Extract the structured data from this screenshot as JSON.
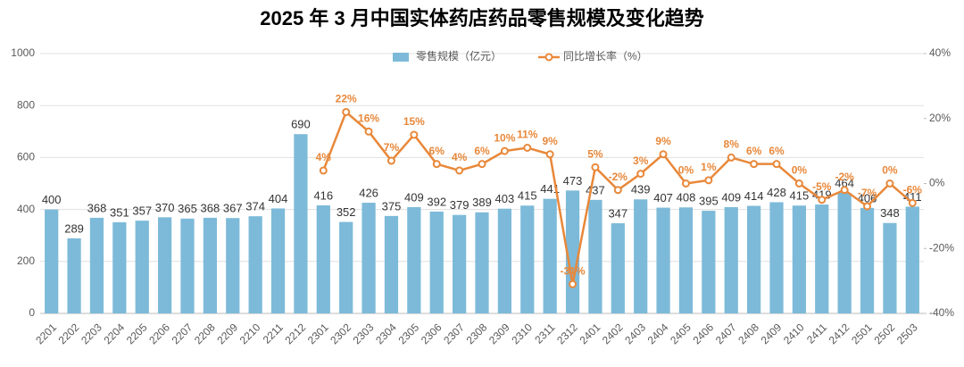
{
  "chart_data": {
    "type": "bar_line",
    "title": "2025 年 3 月中国实体药店药品零售规模及变化趋势",
    "categories": [
      "2201",
      "2202",
      "2203",
      "2204",
      "2205",
      "2206",
      "2207",
      "2208",
      "2209",
      "2210",
      "2211",
      "2212",
      "2301",
      "2302",
      "2303",
      "2304",
      "2305",
      "2306",
      "2307",
      "2308",
      "2309",
      "2310",
      "2311",
      "2312",
      "2401",
      "2402",
      "2403",
      "2404",
      "2405",
      "2406",
      "2407",
      "2408",
      "2409",
      "2410",
      "2411",
      "2412",
      "2501",
      "2502",
      "2503"
    ],
    "series": [
      {
        "name": "零售规模（亿元）",
        "type": "bar",
        "color": "#7dbad9",
        "values": [
          400,
          289,
          368,
          351,
          357,
          370,
          365,
          368,
          367,
          374,
          404,
          690,
          416,
          352,
          426,
          375,
          409,
          392,
          379,
          389,
          403,
          415,
          441,
          473,
          437,
          347,
          439,
          407,
          408,
          395,
          409,
          414,
          428,
          415,
          419,
          464,
          406,
          348,
          411
        ]
      },
      {
        "name": "同比增长率（%）",
        "type": "line",
        "axis": "y2",
        "color": "#e8883a",
        "values": [
          null,
          null,
          null,
          null,
          null,
          null,
          null,
          null,
          null,
          null,
          null,
          null,
          4,
          22,
          16,
          7,
          15,
          6,
          4,
          6,
          10,
          11,
          9,
          -31,
          5,
          -2,
          3,
          9,
          0,
          1,
          8,
          6,
          6,
          0,
          -5,
          -2,
          -7,
          0,
          -6
        ],
        "value_labels": [
          null,
          null,
          null,
          null,
          null,
          null,
          null,
          null,
          null,
          null,
          null,
          null,
          "4%",
          "22%",
          "16%",
          "7%",
          "15%",
          "6%",
          "4%",
          "6%",
          "10%",
          "11%",
          "9%",
          "-31%",
          "5%",
          "-2%",
          "3%",
          "9%",
          "0%",
          "1%",
          "8%",
          "6%",
          "6%",
          "0%",
          "-5%",
          "-2%",
          "-7%",
          "0%",
          "-6%"
        ]
      }
    ],
    "ylim": [
      0,
      1000
    ],
    "yticks": [
      0,
      200,
      400,
      600,
      800,
      1000
    ],
    "y2lim": [
      -40,
      40
    ],
    "y2ticks": [
      {
        "value": -40,
        "label": "-40%"
      },
      {
        "value": -20,
        "label": "-20%"
      },
      {
        "value": 0,
        "label": "0%"
      },
      {
        "value": 20,
        "label": "20%"
      },
      {
        "value": 40,
        "label": "40%"
      }
    ],
    "legend": "top"
  }
}
